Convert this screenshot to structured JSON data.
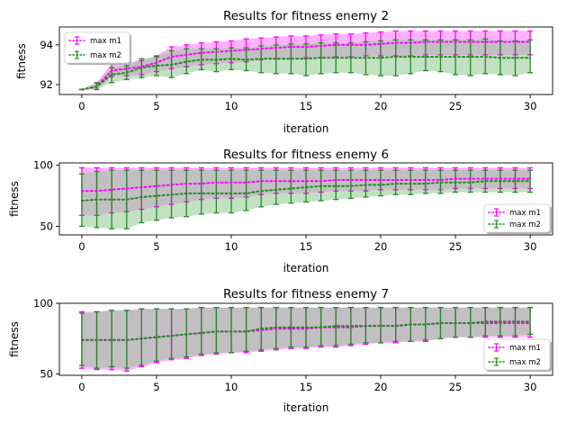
{
  "chart_data": [
    {
      "type": "line",
      "title": "Results for fitness enemy 2",
      "xlabel": "iteration",
      "ylabel": "fitness",
      "xlim": [
        -1.5,
        31.5
      ],
      "ylim": [
        91.5,
        94.9
      ],
      "xticks": [
        0,
        5,
        10,
        15,
        20,
        25,
        30
      ],
      "yticks": [
        92,
        94
      ],
      "legend_loc": "upper left",
      "x": [
        0,
        1,
        2,
        3,
        4,
        5,
        6,
        7,
        8,
        9,
        10,
        11,
        12,
        13,
        14,
        15,
        16,
        17,
        18,
        19,
        20,
        21,
        22,
        23,
        24,
        25,
        26,
        27,
        28,
        29,
        30
      ],
      "series": [
        {
          "name": "max m1",
          "color": "#ff00ff",
          "fill": "#ff99ff",
          "mean": [
            91.75,
            91.9,
            92.7,
            92.8,
            92.9,
            93.1,
            93.4,
            93.5,
            93.6,
            93.65,
            93.7,
            93.75,
            93.8,
            93.85,
            93.9,
            93.9,
            93.95,
            94.0,
            94.0,
            94.0,
            94.05,
            94.1,
            94.1,
            94.15,
            94.15,
            94.15,
            94.15,
            94.15,
            94.15,
            94.15,
            94.15
          ],
          "lower": [
            91.75,
            91.75,
            92.4,
            92.45,
            92.5,
            92.65,
            92.8,
            92.9,
            93.0,
            93.05,
            93.1,
            93.15,
            93.25,
            93.3,
            93.3,
            93.35,
            93.35,
            93.4,
            93.4,
            93.45,
            93.45,
            93.45,
            93.45,
            93.5,
            93.5,
            93.5,
            93.5,
            93.5,
            93.5,
            93.5,
            93.5
          ],
          "upper": [
            91.75,
            92.1,
            93.05,
            93.1,
            93.2,
            93.45,
            93.9,
            94.0,
            94.1,
            94.15,
            94.2,
            94.3,
            94.35,
            94.4,
            94.45,
            94.45,
            94.5,
            94.55,
            94.55,
            94.6,
            94.65,
            94.7,
            94.7,
            94.7,
            94.7,
            94.7,
            94.7,
            94.7,
            94.7,
            94.7,
            94.7
          ]
        },
        {
          "name": "max m2",
          "color": "#228b22",
          "fill": "#8fc98f",
          "mean": [
            91.75,
            91.9,
            92.5,
            92.6,
            92.85,
            92.95,
            93.0,
            93.15,
            93.25,
            93.25,
            93.3,
            93.25,
            93.3,
            93.3,
            93.3,
            93.3,
            93.35,
            93.35,
            93.35,
            93.35,
            93.35,
            93.4,
            93.4,
            93.4,
            93.4,
            93.4,
            93.4,
            93.4,
            93.35,
            93.35,
            93.35
          ],
          "lower": [
            91.75,
            91.75,
            92.1,
            92.25,
            92.35,
            92.45,
            92.35,
            92.55,
            92.75,
            92.65,
            92.75,
            92.7,
            92.6,
            92.55,
            92.55,
            92.45,
            92.55,
            92.6,
            92.6,
            92.5,
            92.45,
            92.45,
            92.55,
            92.7,
            92.65,
            92.5,
            92.45,
            92.55,
            92.5,
            92.45,
            92.6
          ],
          "upper": [
            91.75,
            92.1,
            92.85,
            92.95,
            93.3,
            93.4,
            93.7,
            93.8,
            93.8,
            93.8,
            93.85,
            93.85,
            93.95,
            94.0,
            94.05,
            94.05,
            94.1,
            94.1,
            94.1,
            94.15,
            94.2,
            94.25,
            94.25,
            94.25,
            94.25,
            94.25,
            94.25,
            94.3,
            94.2,
            94.2,
            94.25
          ]
        }
      ]
    },
    {
      "type": "line",
      "title": "Results for fitness enemy 6",
      "xlabel": "iteration",
      "ylabel": "fitness",
      "xlim": [
        -1.5,
        31.5
      ],
      "ylim": [
        43,
        102
      ],
      "xticks": [
        0,
        5,
        10,
        15,
        20,
        25,
        30
      ],
      "yticks": [
        50,
        100
      ],
      "legend_loc": "lower right",
      "x": [
        0,
        1,
        2,
        3,
        4,
        5,
        6,
        7,
        8,
        9,
        10,
        11,
        12,
        13,
        14,
        15,
        16,
        17,
        18,
        19,
        20,
        21,
        22,
        23,
        24,
        25,
        26,
        27,
        28,
        29,
        30
      ],
      "series": [
        {
          "name": "max m1",
          "color": "#ff00ff",
          "fill": "#ff99ff",
          "mean": [
            79,
            79,
            80,
            81,
            82,
            83,
            84,
            85,
            85,
            86,
            86,
            86,
            87,
            87,
            87,
            87,
            87,
            88,
            88,
            88,
            88,
            88,
            88,
            88,
            88,
            89,
            89,
            89,
            89,
            89,
            89
          ],
          "lower": [
            59,
            59,
            61,
            62,
            64,
            66,
            68,
            70,
            72,
            73,
            73,
            74,
            76,
            77,
            77,
            77,
            78,
            79,
            79,
            79,
            80,
            80,
            80,
            80,
            80,
            81,
            81,
            81,
            81,
            81,
            81
          ],
          "upper": [
            98,
            98,
            98,
            98,
            98,
            98,
            98,
            98,
            98,
            98,
            98,
            98,
            98,
            98,
            98,
            98,
            98,
            98,
            98,
            98,
            98,
            98,
            98,
            98,
            98,
            98,
            98,
            98,
            98,
            98,
            98
          ]
        },
        {
          "name": "max m2",
          "color": "#228b22",
          "fill": "#8fc98f",
          "mean": [
            71,
            72,
            72,
            72,
            74,
            75,
            76,
            77,
            77,
            77,
            77,
            77,
            79,
            80,
            81,
            82,
            83,
            83,
            83,
            84,
            84,
            85,
            85,
            85,
            86,
            86,
            86,
            87,
            87,
            87,
            87
          ],
          "lower": [
            50,
            49,
            48,
            48,
            53,
            55,
            57,
            58,
            60,
            61,
            61,
            63,
            66,
            68,
            69,
            70,
            71,
            72,
            73,
            74,
            75,
            76,
            76,
            77,
            77,
            78,
            78,
            78,
            78,
            78,
            78
          ],
          "upper": [
            93,
            95,
            96,
            96,
            96,
            96,
            96,
            96,
            96,
            96,
            96,
            96,
            96,
            96,
            96,
            96,
            96,
            96,
            96,
            96,
            96,
            96,
            96,
            96,
            96,
            96,
            96,
            96,
            96,
            96,
            96
          ]
        }
      ]
    },
    {
      "type": "line",
      "title": "Results for fitness enemy 7",
      "xlabel": "iteration",
      "ylabel": "fitness",
      "xlim": [
        -1.5,
        31.5
      ],
      "ylim": [
        49,
        100
      ],
      "xticks": [
        0,
        5,
        10,
        15,
        20,
        25,
        30
      ],
      "yticks": [
        50,
        100
      ],
      "legend_loc": "lower right",
      "x": [
        0,
        1,
        2,
        3,
        4,
        5,
        6,
        7,
        8,
        9,
        10,
        11,
        12,
        13,
        14,
        15,
        16,
        17,
        18,
        19,
        20,
        21,
        22,
        23,
        24,
        25,
        26,
        27,
        28,
        29,
        30
      ],
      "series": [
        {
          "name": "max m1",
          "color": "#ff00ff",
          "fill": "#ff99ff",
          "mean": [
            74,
            74,
            74,
            74,
            75,
            76,
            77,
            78,
            79,
            80,
            80,
            80,
            81,
            82,
            82,
            82,
            83,
            83,
            83,
            84,
            84,
            84,
            85,
            85,
            86,
            86,
            86,
            86,
            86,
            86,
            86
          ],
          "lower": [
            54,
            53,
            53,
            52,
            55,
            58,
            60,
            61,
            63,
            64,
            65,
            65,
            66,
            67,
            68,
            68,
            69,
            69,
            70,
            71,
            72,
            72,
            73,
            73,
            75,
            76,
            76,
            76,
            76,
            76,
            76
          ],
          "upper": [
            94,
            94,
            95,
            95,
            96,
            96,
            96,
            96,
            97,
            97,
            97,
            97,
            97,
            97,
            97,
            97,
            97,
            97,
            97,
            97,
            97,
            97,
            97,
            97,
            97,
            97,
            97,
            97,
            97,
            97,
            97
          ]
        },
        {
          "name": "max m2",
          "color": "#228b22",
          "fill": "#8fc98f",
          "mean": [
            74,
            74,
            74,
            74,
            75,
            76,
            77,
            78,
            79,
            80,
            80,
            80,
            82,
            83,
            83,
            83,
            83,
            84,
            84,
            84,
            84,
            84,
            85,
            85,
            86,
            86,
            86,
            87,
            87,
            87,
            87
          ],
          "lower": [
            56,
            54,
            55,
            54,
            56,
            59,
            61,
            62,
            64,
            65,
            65,
            66,
            67,
            68,
            69,
            69,
            70,
            70,
            71,
            72,
            72,
            73,
            73,
            74,
            75,
            76,
            76,
            77,
            77,
            77,
            78
          ],
          "upper": [
            93,
            94,
            95,
            95,
            96,
            96,
            96,
            96,
            97,
            97,
            97,
            97,
            97,
            97,
            97,
            97,
            97,
            97,
            97,
            97,
            97,
            97,
            97,
            97,
            97,
            97,
            97,
            97,
            97,
            97,
            97
          ]
        }
      ]
    }
  ]
}
